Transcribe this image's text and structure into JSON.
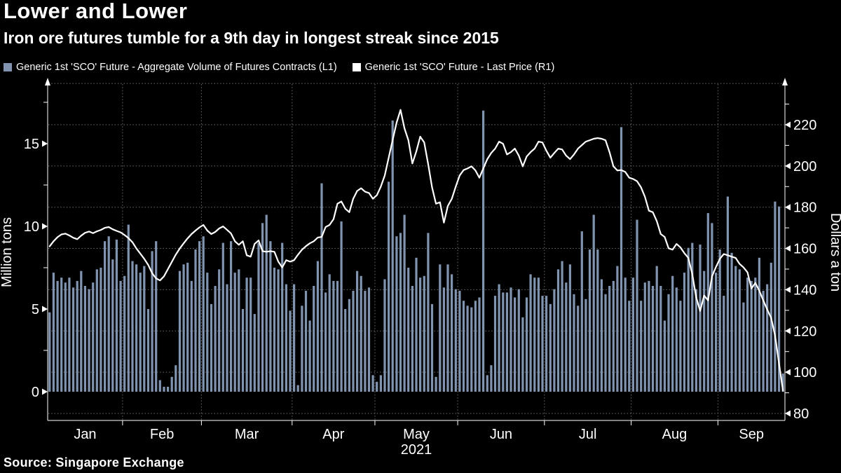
{
  "title": "Lower and Lower",
  "subtitle": "Iron ore futures tumble for a 9th day in longest streak since 2015",
  "source": "Source:  Singapore Exchange",
  "colors": {
    "background": "#000000",
    "bar": "#8093af",
    "line": "#ffffff",
    "grid": "#6e6e6e",
    "axis": "#ffffff"
  },
  "legend": [
    {
      "label": "Generic 1st 'SCO' Future - Aggregate Volume of Futures Contracts (L1)",
      "color": "#8093af"
    },
    {
      "label": "Generic 1st 'SCO' Future - Last Price (R1)",
      "color": "#ffffff"
    }
  ],
  "chart_data": {
    "type": "combo-bar-line",
    "title": "Lower and Lower",
    "x_months": [
      "Jan",
      "Feb",
      "Mar",
      "Apr",
      "May",
      "Jun",
      "Jul",
      "Aug",
      "Sep"
    ],
    "x_year_label": "2021",
    "month_start_index": [
      0,
      19,
      39,
      62,
      83,
      104,
      126,
      148,
      170
    ],
    "left_axis": {
      "label": "Million tons",
      "ticks": [
        0,
        5,
        10,
        15
      ],
      "minor_step": 2.5,
      "range": [
        0,
        18.6
      ]
    },
    "right_axis": {
      "label": "Dollars a ton",
      "ticks": [
        80,
        100,
        120,
        140,
        160,
        180,
        200,
        220
      ],
      "minor": [
        90,
        110,
        130,
        150,
        170,
        190,
        210,
        230
      ],
      "gridlines": [
        80,
        100,
        120,
        140,
        160,
        180,
        200,
        220,
        240
      ],
      "range": [
        76,
        240
      ]
    },
    "legend_position": "top-left",
    "grid": "dotted",
    "series": [
      {
        "name": "Generic 1st 'SCO' Future - Aggregate Volume of Futures Contracts (L1)",
        "type": "bar",
        "axis": "left",
        "unit": "million tons",
        "color": "#8093af",
        "values": [
          4.8,
          7.2,
          6.7,
          6.9,
          6.6,
          6.9,
          6.3,
          6.7,
          7.3,
          6.4,
          6.2,
          6.6,
          7.4,
          7.5,
          9.1,
          9.4,
          8.0,
          9.2,
          6.7,
          7.0,
          10.1,
          7.9,
          7.7,
          7.2,
          7.6,
          5.0,
          8.5,
          9.1,
          0.7,
          0.3,
          0.3,
          0.9,
          1.6,
          7.3,
          7.7,
          7.8,
          6.7,
          8.6,
          9.1,
          9.4,
          7.2,
          5.3,
          6.4,
          7.4,
          9.0,
          6.5,
          9.1,
          7.2,
          7.4,
          5.0,
          6.9,
          6.9,
          4.7,
          9.0,
          10.2,
          10.7,
          9.1,
          7.5,
          7.4,
          9.0,
          6.5,
          4.9,
          6.5,
          0.4,
          5.2,
          6.1,
          4.3,
          6.4,
          7.9,
          12.6,
          6.0,
          7.1,
          6.7,
          6.7,
          10.3,
          5.0,
          5.6,
          6.1,
          7.3,
          7.0,
          6.1,
          6.3,
          1.0,
          0.6,
          1.0,
          6.8,
          12.7,
          16.4,
          9.4,
          9.6,
          10.7,
          7.5,
          6.4,
          8.1,
          6.9,
          7.0,
          9.6,
          5.3,
          0.9,
          7.7,
          6.3,
          7.7,
          7.1,
          6.2,
          6.1,
          5.5,
          5.2,
          5.1,
          5.5,
          5.7,
          17.0,
          1.0,
          1.6,
          5.8,
          6.5,
          6.0,
          6.0,
          6.3,
          5.7,
          6.2,
          4.5,
          5.7,
          7.1,
          6.9,
          6.9,
          5.8,
          5.8,
          5.3,
          6.2,
          7.4,
          7.9,
          6.6,
          7.7,
          5.9,
          5.2,
          9.7,
          5.6,
          8.6,
          10.7,
          8.6,
          6.8,
          5.9,
          6.4,
          6.7,
          7.6,
          16.0,
          6.9,
          5.5,
          6.9,
          10.4,
          5.5,
          6.6,
          6.7,
          6.4,
          7.6,
          6.4,
          4.3,
          5.9,
          7.0,
          6.3,
          5.5,
          7.2,
          8.7,
          9.0,
          6.2,
          8.9,
          7.3,
          10.8,
          10.2,
          7.2,
          8.6,
          5.8,
          11.8,
          8.4,
          7.6,
          7.4,
          5.4,
          6.9,
          6.7,
          6.9,
          8.1,
          6.1,
          6.5,
          7.8,
          11.5,
          11.2,
          1.1
        ]
      },
      {
        "name": "Generic 1st 'SCO' Future - Last Price (R1)",
        "type": "line",
        "axis": "right",
        "unit": "dollars a ton",
        "color": "#ffffff",
        "values": [
          161.0,
          163.5,
          165.5,
          166.8,
          167.2,
          166.3,
          165.2,
          164.5,
          166.2,
          167.6,
          168.2,
          167.4,
          168.3,
          169.0,
          170.0,
          170.4,
          169.3,
          168.5,
          167.8,
          166.5,
          165.0,
          163.0,
          160.0,
          157.5,
          155.0,
          152.0,
          148.0,
          145.5,
          144.5,
          146.5,
          150.0,
          153.5,
          157.0,
          160.0,
          162.5,
          164.9,
          167.0,
          168.7,
          170.2,
          171.4,
          168.7,
          167.0,
          168.0,
          169.7,
          170.7,
          169.0,
          167.3,
          163.5,
          161.8,
          163.5,
          156.7,
          156.0,
          162.2,
          163.9,
          158.7,
          158.4,
          158.7,
          158.4,
          153.6,
          150.8,
          154.3,
          153.6,
          154.3,
          157.0,
          159.4,
          161.1,
          162.5,
          163.5,
          165.3,
          165.6,
          170.4,
          171.4,
          174.2,
          181.7,
          182.8,
          179.3,
          177.6,
          184.1,
          187.9,
          189.2,
          187.5,
          186.9,
          184.1,
          185.8,
          190.0,
          195.4,
          204.0,
          212.5,
          221.0,
          227.2,
          218.3,
          212.5,
          201.2,
          207.0,
          214.2,
          211.4,
          201.0,
          189.6,
          181.7,
          182.4,
          172.5,
          180.6,
          184.0,
          190.0,
          195.4,
          198.0,
          198.8,
          199.8,
          197.8,
          194.3,
          198.8,
          203.3,
          206.3,
          208.4,
          211.8,
          210.8,
          205.6,
          206.7,
          208.4,
          205.0,
          199.8,
          204.6,
          206.7,
          208.4,
          211.8,
          211.4,
          207.4,
          204.0,
          206.3,
          208.4,
          208.0,
          205.0,
          203.3,
          205.6,
          208.4,
          210.1,
          211.8,
          212.5,
          213.2,
          213.5,
          213.2,
          212.5,
          206.7,
          199.8,
          197.8,
          198.0,
          197.1,
          194.3,
          193.7,
          192.6,
          189.6,
          185.0,
          178.3,
          177.6,
          173.2,
          167.0,
          165.6,
          160.1,
          159.4,
          162.2,
          160.5,
          157.7,
          155.4,
          147.5,
          136.2,
          129.7,
          137.2,
          134.8,
          146.4,
          151.0,
          155.0,
          157.3,
          156.7,
          156.0,
          155.4,
          152.5,
          150.8,
          148.4,
          140.6,
          143.3,
          139.5,
          134.8,
          130.4,
          126.3,
          117.8,
          104.1,
          91.0
        ]
      }
    ]
  }
}
